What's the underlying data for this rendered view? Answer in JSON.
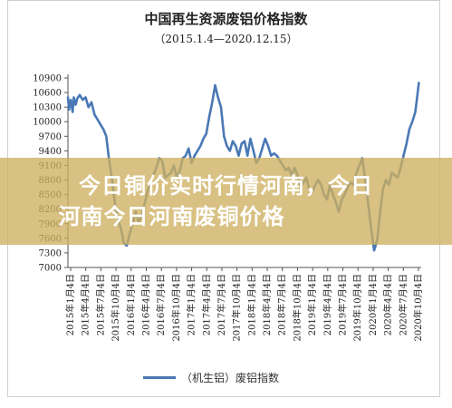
{
  "colors": {
    "line": "#4a78b5",
    "banner": "#cdaf5f",
    "banner_text": "#ffffff"
  },
  "banner": {
    "line1": "今日铜价实时行情河南，今日",
    "line2": "河南今日河南废铜价格"
  },
  "chart_data": {
    "type": "line",
    "title": "中国再生资源废铝价格指数",
    "subtitle": "（2015.1.4—2020.12.15）",
    "legend": "（机生铝）废铝指数",
    "legend_placement": "bottom",
    "grid": false,
    "xlabel": "",
    "ylabel": "",
    "ylim": [
      7000,
      10900
    ],
    "yticks": [
      7000,
      7300,
      7600,
      7900,
      8200,
      8500,
      8800,
      9100,
      9400,
      9700,
      10000,
      10300,
      10600,
      10900
    ],
    "xlim": [
      2015.0,
      2021.0
    ],
    "xtick_labels": [
      "2015年1月4日",
      "2015年4月4日",
      "2015年7月4日",
      "2015年10月4日",
      "2016年1月4日",
      "2016年4月4日",
      "2016年7月4日",
      "2016年10月4日",
      "2017年1月4日",
      "2017年4月4日",
      "2017年7月4日",
      "2017年10月4日",
      "2018年1月4日",
      "2018年4月4日",
      "2018年7月4日",
      "2018年10月4日",
      "2019年1月4日",
      "2019年4月4日",
      "2019年7月4日",
      "2019年10月4日",
      "2020年1月4日",
      "2020年4月4日",
      "2020年7月4日",
      "2020年10月4日"
    ],
    "series": [
      {
        "name": "（机生铝）废铝指数",
        "x": [
          2015.0,
          2015.02,
          2015.05,
          2015.08,
          2015.1,
          2015.13,
          2015.16,
          2015.2,
          2015.25,
          2015.3,
          2015.35,
          2015.4,
          2015.45,
          2015.5,
          2015.55,
          2015.6,
          2015.65,
          2015.7,
          2015.75,
          2015.8,
          2015.85,
          2015.9,
          2015.95,
          2016.0,
          2016.05,
          2016.1,
          2016.15,
          2016.2,
          2016.25,
          2016.3,
          2016.35,
          2016.4,
          2016.45,
          2016.5,
          2016.55,
          2016.6,
          2016.65,
          2016.7,
          2016.75,
          2016.8,
          2016.85,
          2016.9,
          2016.95,
          2017.0,
          2017.05,
          2017.1,
          2017.15,
          2017.2,
          2017.25,
          2017.3,
          2017.35,
          2017.4,
          2017.45,
          2017.5,
          2017.55,
          2017.6,
          2017.65,
          2017.7,
          2017.75,
          2017.8,
          2017.85,
          2017.9,
          2017.95,
          2018.0,
          2018.05,
          2018.1,
          2018.15,
          2018.2,
          2018.25,
          2018.3,
          2018.35,
          2018.4,
          2018.45,
          2018.5,
          2018.55,
          2018.6,
          2018.65,
          2018.7,
          2018.75,
          2018.8,
          2018.85,
          2018.9,
          2018.95,
          2019.0,
          2019.05,
          2019.1,
          2019.15,
          2019.2,
          2019.25,
          2019.3,
          2019.35,
          2019.4,
          2019.45,
          2019.5,
          2019.55,
          2019.6,
          2019.65,
          2019.7,
          2019.75,
          2019.8,
          2019.85,
          2019.9,
          2019.95,
          2020.0,
          2020.05,
          2020.1,
          2020.15,
          2020.2,
          2020.25,
          2020.3,
          2020.35,
          2020.4,
          2020.45,
          2020.5,
          2020.55,
          2020.6,
          2020.65,
          2020.7,
          2020.75,
          2020.8,
          2020.85,
          2020.9,
          2020.93,
          2020.96
        ],
        "values": [
          10500,
          10250,
          10450,
          10200,
          10500,
          10350,
          10480,
          10550,
          10450,
          10500,
          10300,
          10400,
          10150,
          10050,
          9950,
          9850,
          9700,
          9200,
          8800,
          8300,
          8000,
          7800,
          7500,
          7450,
          7700,
          7900,
          8150,
          7950,
          8050,
          8300,
          8550,
          8750,
          8900,
          9050,
          9250,
          9200,
          8850,
          8900,
          8950,
          9100,
          8850,
          9000,
          9250,
          9300,
          9450,
          9150,
          9300,
          9400,
          9500,
          9650,
          9750,
          10100,
          10400,
          10750,
          10500,
          10300,
          9700,
          9500,
          9400,
          9600,
          9500,
          9300,
          9550,
          9600,
          9300,
          9650,
          9400,
          9150,
          9250,
          9450,
          9650,
          9500,
          9300,
          9350,
          9300,
          9200,
          9100,
          9000,
          9050,
          8900,
          9050,
          8900,
          8650,
          8750,
          8850,
          8600,
          8550,
          8700,
          8800,
          8700,
          8500,
          8400,
          8700,
          8500,
          8350,
          8150,
          8400,
          8500,
          8650,
          8750,
          8700,
          8950,
          9100,
          9250,
          8800,
          8300,
          7800,
          7350,
          7550,
          8100,
          8600,
          8800,
          8700,
          8950,
          8900,
          8850,
          9050,
          9300,
          9550,
          9850,
          10000,
          10200,
          10500,
          10800
        ]
      }
    ]
  }
}
